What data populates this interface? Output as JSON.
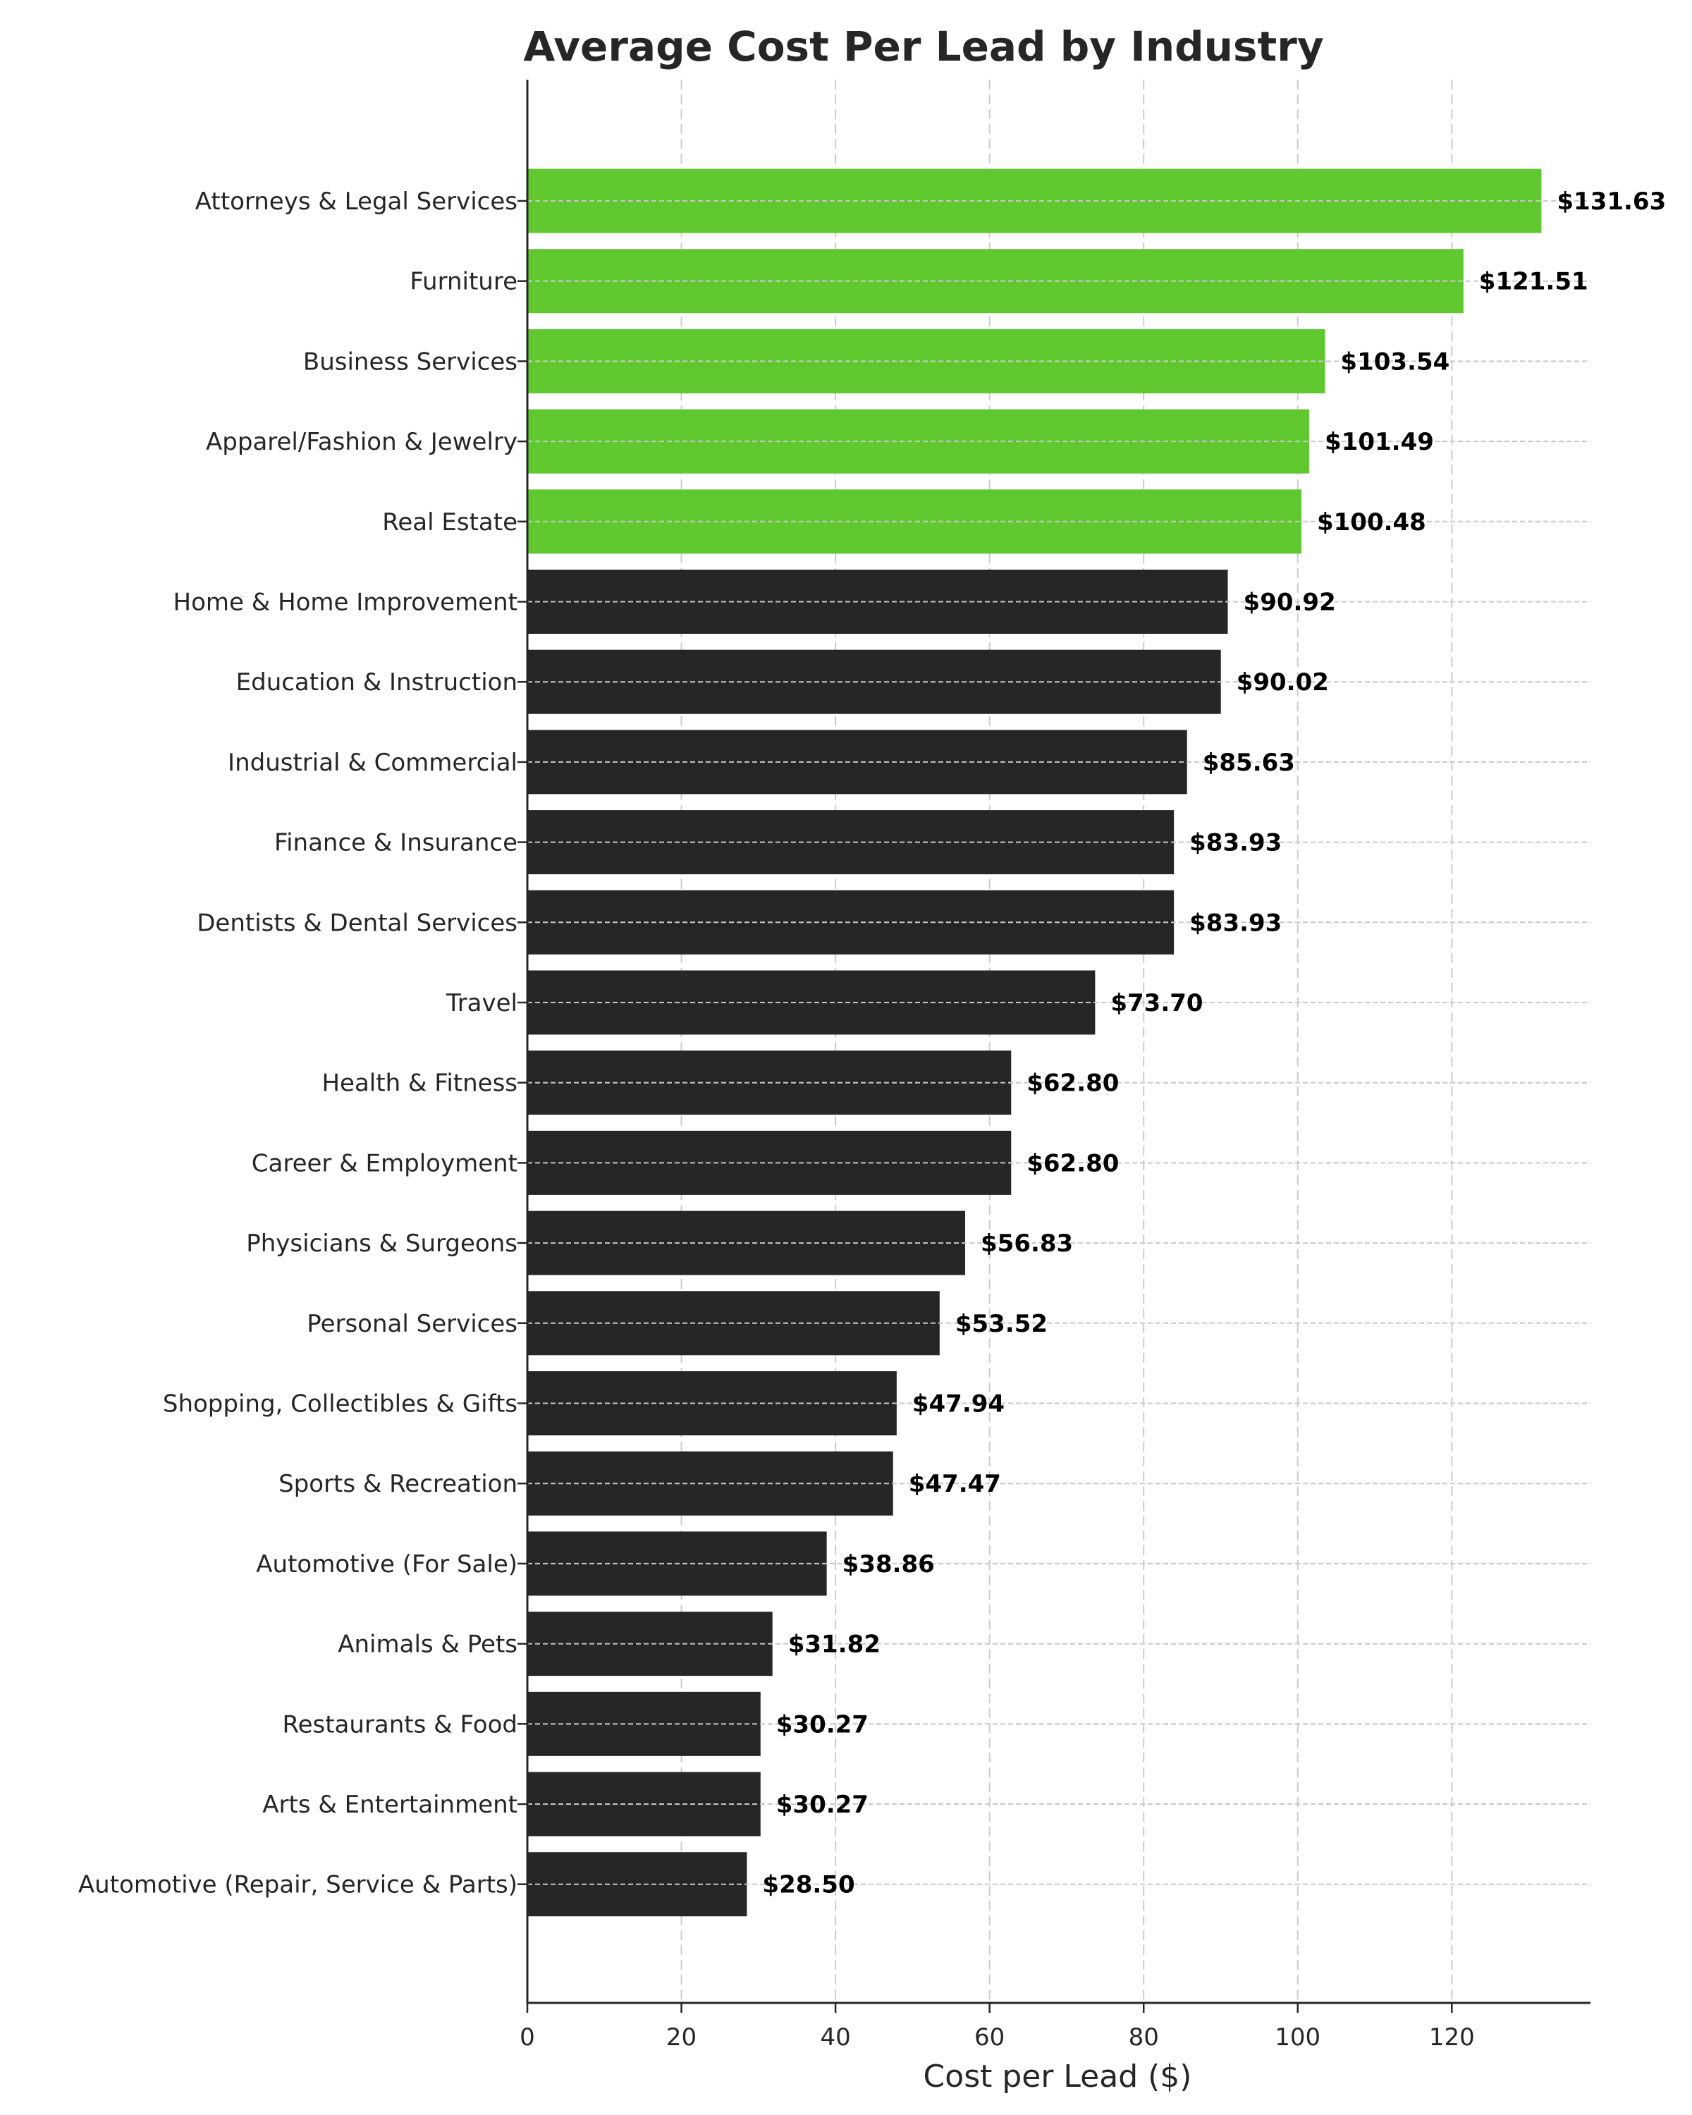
{
  "chart_data": {
    "type": "bar",
    "orientation": "horizontal",
    "title": "Average Cost Per Lead by Industry",
    "xlabel": "Cost per Lead ($)",
    "ylabel": "",
    "xlim": [
      0,
      138
    ],
    "xticks": [
      0,
      20,
      40,
      60,
      80,
      100,
      120
    ],
    "grid": true,
    "highlight_color": "#5ec82e",
    "base_color": "#262626",
    "highlight_top_n": 5,
    "categories": [
      "Attorneys & Legal Services",
      "Furniture",
      "Business Services",
      "Apparel/Fashion & Jewelry",
      "Real Estate",
      "Home & Home Improvement",
      "Education & Instruction",
      "Industrial & Commercial",
      "Finance & Insurance",
      "Dentists & Dental Services",
      "Travel",
      "Health & Fitness",
      "Career & Employment",
      "Physicians & Surgeons",
      "Personal Services",
      "Shopping, Collectibles & Gifts",
      "Sports & Recreation",
      "Automotive (For Sale)",
      "Animals & Pets",
      "Restaurants & Food",
      "Arts & Entertainment",
      "Automotive (Repair, Service & Parts)"
    ],
    "values": [
      131.63,
      121.51,
      103.54,
      101.49,
      100.48,
      90.92,
      90.02,
      85.63,
      83.93,
      83.93,
      73.7,
      62.8,
      62.8,
      56.83,
      53.52,
      47.94,
      47.47,
      38.86,
      31.82,
      30.27,
      30.27,
      28.5
    ],
    "data_labels": [
      "$131.63",
      "$121.51",
      "$103.54",
      "$101.49",
      "$100.48",
      "$90.92",
      "$90.02",
      "$85.63",
      "$83.93",
      "$83.93",
      "$73.70",
      "$62.80",
      "$62.80",
      "$56.83",
      "$53.52",
      "$47.94",
      "$47.47",
      "$38.86",
      "$31.82",
      "$30.27",
      "$30.27",
      "$28.50"
    ]
  }
}
